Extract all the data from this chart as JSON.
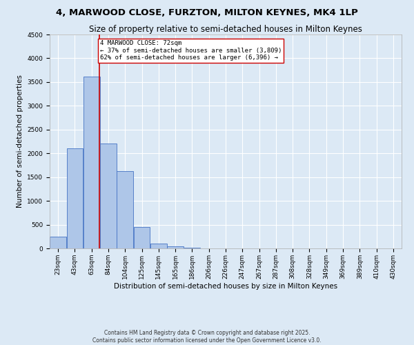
{
  "title": "4, MARWOOD CLOSE, FURZTON, MILTON KEYNES, MK4 1LP",
  "subtitle": "Size of property relative to semi-detached houses in Milton Keynes",
  "xlabel": "Distribution of semi-detached houses by size in Milton Keynes",
  "ylabel": "Number of semi-detached properties",
  "bin_labels": [
    "23sqm",
    "43sqm",
    "63sqm",
    "84sqm",
    "104sqm",
    "125sqm",
    "145sqm",
    "165sqm",
    "186sqm",
    "206sqm",
    "226sqm",
    "247sqm",
    "267sqm",
    "287sqm",
    "308sqm",
    "328sqm",
    "349sqm",
    "369sqm",
    "389sqm",
    "410sqm",
    "430sqm"
  ],
  "bin_edges": [
    13,
    33,
    53,
    73,
    93,
    113,
    133,
    153,
    173,
    193,
    213,
    233,
    253,
    273,
    293,
    313,
    333,
    353,
    373,
    393,
    413,
    433
  ],
  "bin_counts": [
    250,
    2100,
    3620,
    2210,
    1630,
    450,
    100,
    45,
    10,
    0,
    0,
    0,
    0,
    0,
    0,
    0,
    0,
    0,
    0,
    0,
    0
  ],
  "bar_color": "#aec6e8",
  "bar_edge_color": "#4472c4",
  "property_size": 72,
  "red_line_color": "#cc0000",
  "annotation_text": "4 MARWOOD CLOSE: 72sqm\n← 37% of semi-detached houses are smaller (3,809)\n62% of semi-detached houses are larger (6,396) →",
  "annotation_box_color": "#ffffff",
  "annotation_box_edge": "#cc0000",
  "ylim": [
    0,
    4500
  ],
  "yticks": [
    0,
    500,
    1000,
    1500,
    2000,
    2500,
    3000,
    3500,
    4000,
    4500
  ],
  "background_color": "#dce9f5",
  "plot_bg_color": "#dce9f5",
  "grid_color": "#ffffff",
  "footer_text": "Contains HM Land Registry data © Crown copyright and database right 2025.\nContains public sector information licensed under the Open Government Licence v3.0.",
  "title_fontsize": 9.5,
  "subtitle_fontsize": 8.5,
  "axis_label_fontsize": 7.5,
  "tick_fontsize": 6.5,
  "annotation_fontsize": 6.5,
  "footer_fontsize": 5.5
}
